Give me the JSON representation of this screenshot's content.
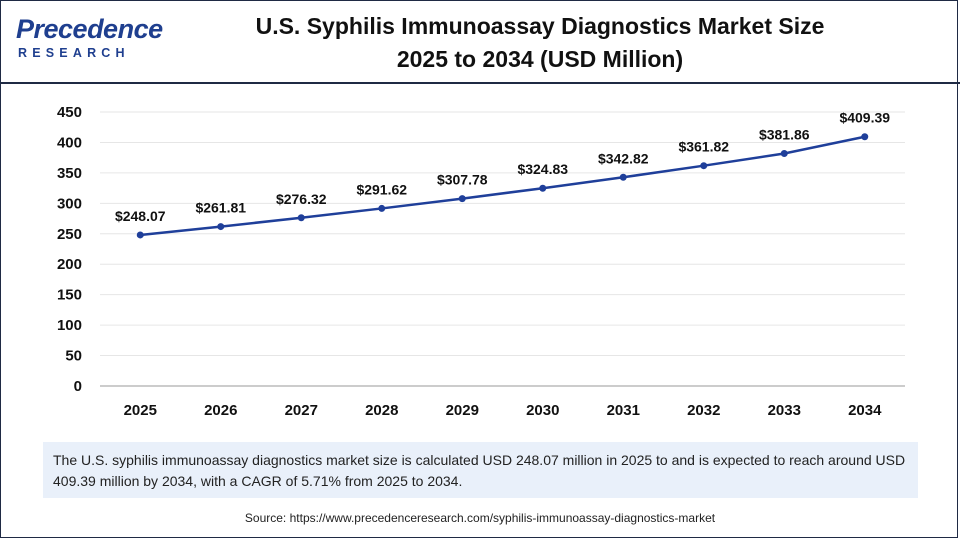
{
  "brand": {
    "name": "Precedence",
    "sub": "RESEARCH"
  },
  "title_line1": "U.S. Syphilis Immunoassay Diagnostics Market Size",
  "title_line2": "2025 to 2034 (USD Million)",
  "chart_data": {
    "type": "line",
    "title": "U.S. Syphilis Immunoassay Diagnostics Market Size 2025 to 2034 (USD Million)",
    "xlabel": "",
    "ylabel": "",
    "categories": [
      "2025",
      "2026",
      "2027",
      "2028",
      "2029",
      "2030",
      "2031",
      "2032",
      "2033",
      "2034"
    ],
    "values": [
      248.07,
      261.81,
      276.32,
      291.62,
      307.78,
      324.83,
      342.82,
      361.82,
      381.86,
      409.39
    ],
    "data_labels": [
      "$248.07",
      "$261.81",
      "$276.32",
      "$291.62",
      "$307.78",
      "$324.83",
      "$342.82",
      "$361.82",
      "$381.86",
      "$409.39"
    ],
    "yticks": [
      0,
      50,
      100,
      150,
      200,
      250,
      300,
      350,
      400,
      450
    ],
    "ylim": [
      0,
      450
    ],
    "grid": true,
    "line_color": "#1f3f9a"
  },
  "description": "The U.S. syphilis immunoassay diagnostics market size is calculated USD 248.07 million in 2025 to and is expected to reach around USD 409.39 million by 2034, with a CAGR of 5.71% from 2025 to 2034.",
  "source": "Source: https://www.precedenceresearch.com/syphilis-immunoassay-diagnostics-market"
}
